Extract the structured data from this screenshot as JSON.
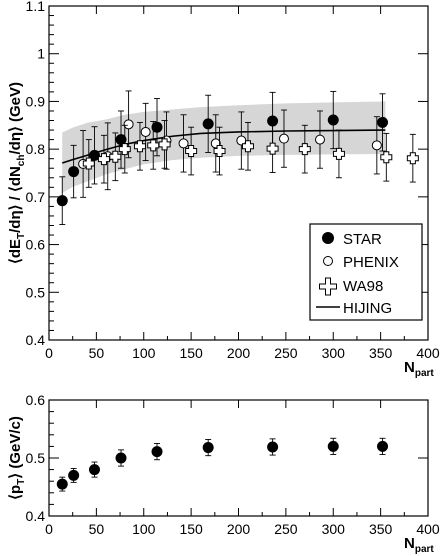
{
  "chart_data": [
    {
      "type": "scatter",
      "title": "",
      "xlabel": "N",
      "xlabel_sub": "part",
      "ylabel": "⟨dE_T/dη⟩ / ⟨dN_ch/dη⟩ (GeV)",
      "xlim": [
        0,
        400
      ],
      "ylim": [
        0.4,
        1.1
      ],
      "xticks": [
        0,
        50,
        100,
        150,
        200,
        250,
        300,
        350,
        400
      ],
      "xtick_labels": [
        "0",
        "50",
        "100",
        "150",
        "200",
        "250",
        "300",
        "350",
        "400"
      ],
      "yticks": [
        0.4,
        0.5,
        0.6,
        0.7,
        0.8,
        0.9,
        1.0,
        1.1
      ],
      "ytick_labels": [
        "0.4",
        "0.5",
        "0.6",
        "0.7",
        "0.8",
        "0.9",
        "1",
        "1.1"
      ],
      "legend_position": "bottom-right",
      "series": [
        {
          "name": "STAR",
          "marker": "filled-circle",
          "x": [
            14,
            26,
            48,
            76,
            114,
            168,
            236,
            300,
            352
          ],
          "y": [
            0.692,
            0.753,
            0.787,
            0.82,
            0.846,
            0.853,
            0.859,
            0.861,
            0.856
          ],
          "err": [
            0.05,
            0.055,
            0.06,
            0.06,
            0.06,
            0.06,
            0.06,
            0.06,
            0.06
          ]
        },
        {
          "name": "PHENIX",
          "marker": "open-circle",
          "x": [
            36,
            62,
            84,
            102,
            124,
            142,
            176,
            203,
            248,
            286,
            346
          ],
          "y": [
            0.769,
            0.785,
            0.852,
            0.836,
            0.818,
            0.812,
            0.812,
            0.818,
            0.822,
            0.82,
            0.808
          ],
          "err": [
            0.07,
            0.07,
            0.07,
            0.06,
            0.06,
            0.06,
            0.06,
            0.06,
            0.06,
            0.06,
            0.06
          ]
        },
        {
          "name": "WA98",
          "marker": "open-cross",
          "x": [
            42,
            58,
            70,
            80,
            96,
            110,
            122,
            150,
            180,
            210,
            236,
            270,
            306,
            356,
            384
          ],
          "y": [
            0.77,
            0.779,
            0.784,
            0.8,
            0.806,
            0.808,
            0.81,
            0.796,
            0.796,
            0.806,
            0.801,
            0.8,
            0.79,
            0.783,
            0.781
          ],
          "err": [
            0.05,
            0.05,
            0.05,
            0.05,
            0.05,
            0.05,
            0.05,
            0.05,
            0.05,
            0.05,
            0.05,
            0.05,
            0.05,
            0.05,
            0.05
          ]
        },
        {
          "name": "HIJING",
          "marker": "line",
          "x": [
            14,
            25,
            40,
            60,
            80,
            100,
            130,
            160,
            200,
            250,
            300,
            355
          ],
          "y": [
            0.771,
            0.778,
            0.787,
            0.799,
            0.81,
            0.818,
            0.827,
            0.833,
            0.836,
            0.838,
            0.839,
            0.84
          ]
        }
      ],
      "band": {
        "x": [
          14,
          25,
          40,
          60,
          80,
          100,
          130,
          160,
          200,
          250,
          300,
          355
        ],
        "lower": [
          0.708,
          0.721,
          0.732,
          0.747,
          0.758,
          0.768,
          0.777,
          0.782,
          0.786,
          0.788,
          0.789,
          0.79
        ],
        "upper": [
          0.835,
          0.845,
          0.855,
          0.862,
          0.872,
          0.878,
          0.883,
          0.888,
          0.892,
          0.896,
          0.898,
          0.9
        ],
        "color": "#d6d6d6"
      }
    },
    {
      "type": "scatter",
      "title": "",
      "xlabel": "N",
      "xlabel_sub": "part",
      "ylabel": "⟨p_T⟩ (GeV/c)",
      "xlim": [
        0,
        400
      ],
      "ylim": [
        0.4,
        0.6
      ],
      "xticks": [
        0,
        50,
        100,
        150,
        200,
        250,
        300,
        350,
        400
      ],
      "xtick_labels": [
        "0",
        "50",
        "100",
        "150",
        "200",
        "250",
        "300",
        "350",
        "400"
      ],
      "yticks": [
        0.4,
        0.5,
        0.6
      ],
      "ytick_labels": [
        "0.4",
        "0.5",
        "0.6"
      ],
      "series": [
        {
          "name": "",
          "marker": "filled-circle",
          "x": [
            14,
            26,
            48,
            76,
            114,
            168,
            236,
            300,
            352
          ],
          "y": [
            0.455,
            0.47,
            0.48,
            0.5,
            0.511,
            0.518,
            0.519,
            0.52,
            0.52
          ],
          "err": [
            0.012,
            0.012,
            0.013,
            0.014,
            0.014,
            0.014,
            0.014,
            0.014,
            0.014
          ]
        }
      ]
    }
  ]
}
